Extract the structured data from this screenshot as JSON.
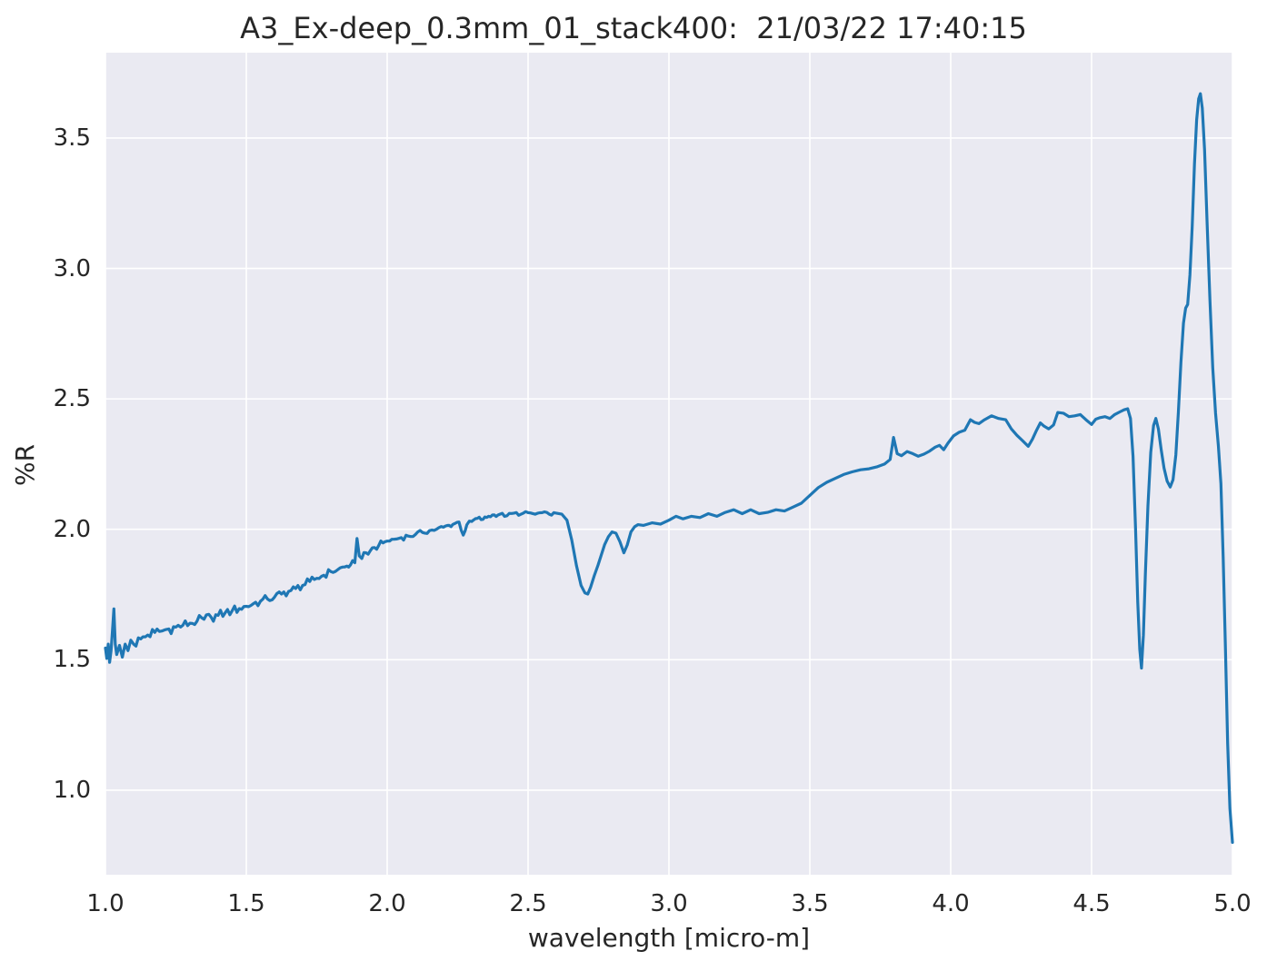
{
  "chart": {
    "title": "A3_Ex-deep_0.3mm_01_stack400:  21/03/22 17:40:15",
    "xlabel": "wavelength [micro-m]",
    "ylabel": "%R"
  },
  "style": {
    "figure_bg": "#ffffff",
    "panel_bg": "#eaeaf2",
    "grid_color": "#ffffff",
    "line_color": "#1f77b4",
    "text_color": "#262626",
    "line_width": 3.2,
    "grid_width": 1.6
  },
  "chart_data": {
    "type": "line",
    "title": "A3_Ex-deep_0.3mm_01_stack400:  21/03/22 17:40:15",
    "xlabel": "wavelength [micro-m]",
    "ylabel": "%R",
    "xlim": [
      1.0,
      5.0
    ],
    "ylim": [
      0.676,
      3.827
    ],
    "grid": true,
    "legend": false,
    "xticks": [
      {
        "value": 1.0,
        "label": "1.0"
      },
      {
        "value": 1.5,
        "label": "1.5"
      },
      {
        "value": 2.0,
        "label": "2.0"
      },
      {
        "value": 2.5,
        "label": "2.5"
      },
      {
        "value": 3.0,
        "label": "3.0"
      },
      {
        "value": 3.5,
        "label": "3.5"
      },
      {
        "value": 4.0,
        "label": "4.0"
      },
      {
        "value": 4.5,
        "label": "4.5"
      },
      {
        "value": 5.0,
        "label": "5.0"
      }
    ],
    "yticks": [
      {
        "value": 1.0,
        "label": "1.0"
      },
      {
        "value": 1.5,
        "label": "1.5"
      },
      {
        "value": 2.0,
        "label": "2.0"
      },
      {
        "value": 2.5,
        "label": "2.5"
      },
      {
        "value": 3.0,
        "label": "3.0"
      },
      {
        "value": 3.5,
        "label": "3.5"
      }
    ],
    "noise": {
      "x_start": 1.0,
      "x_end": 2.6,
      "amp_start": 0.024,
      "amp_end": 0.005,
      "step": 0.0075
    },
    "points": [
      [
        1.0,
        1.545
      ],
      [
        1.005,
        1.505
      ],
      [
        1.01,
        1.56
      ],
      [
        1.015,
        1.49
      ],
      [
        1.02,
        1.535
      ],
      [
        1.025,
        1.61
      ],
      [
        1.03,
        1.695
      ],
      [
        1.035,
        1.56
      ],
      [
        1.04,
        1.52
      ],
      [
        1.05,
        1.555
      ],
      [
        1.06,
        1.51
      ],
      [
        1.07,
        1.56
      ],
      [
        1.08,
        1.535
      ],
      [
        1.09,
        1.575
      ],
      [
        1.1,
        1.56
      ],
      [
        1.125,
        1.58
      ],
      [
        1.15,
        1.595
      ],
      [
        1.175,
        1.605
      ],
      [
        1.2,
        1.61
      ],
      [
        1.225,
        1.618
      ],
      [
        1.25,
        1.625
      ],
      [
        1.275,
        1.632
      ],
      [
        1.3,
        1.64
      ],
      [
        1.325,
        1.648
      ],
      [
        1.35,
        1.655
      ],
      [
        1.375,
        1.663
      ],
      [
        1.4,
        1.67
      ],
      [
        1.425,
        1.68
      ],
      [
        1.45,
        1.688
      ],
      [
        1.475,
        1.696
      ],
      [
        1.5,
        1.705
      ],
      [
        1.525,
        1.715
      ],
      [
        1.55,
        1.724
      ],
      [
        1.575,
        1.733
      ],
      [
        1.6,
        1.74
      ],
      [
        1.625,
        1.752
      ],
      [
        1.65,
        1.762
      ],
      [
        1.675,
        1.773
      ],
      [
        1.7,
        1.785
      ],
      [
        1.725,
        1.8
      ],
      [
        1.75,
        1.812
      ],
      [
        1.775,
        1.824
      ],
      [
        1.8,
        1.838
      ],
      [
        1.825,
        1.846
      ],
      [
        1.85,
        1.856
      ],
      [
        1.87,
        1.864
      ],
      [
        1.885,
        1.872
      ],
      [
        1.893,
        1.965
      ],
      [
        1.901,
        1.898
      ],
      [
        1.91,
        1.888
      ],
      [
        1.925,
        1.91
      ],
      [
        1.94,
        1.918
      ],
      [
        1.955,
        1.93
      ],
      [
        1.97,
        1.938
      ],
      [
        1.985,
        1.948
      ],
      [
        2.0,
        1.955
      ],
      [
        2.025,
        1.962
      ],
      [
        2.05,
        1.968
      ],
      [
        2.075,
        1.974
      ],
      [
        2.1,
        1.98
      ],
      [
        2.125,
        1.988
      ],
      [
        2.15,
        1.995
      ],
      [
        2.175,
        2.0
      ],
      [
        2.2,
        2.008
      ],
      [
        2.22,
        2.015
      ],
      [
        2.24,
        2.022
      ],
      [
        2.255,
        2.028
      ],
      [
        2.27,
        1.978
      ],
      [
        2.283,
        2.018
      ],
      [
        2.3,
        2.03
      ],
      [
        2.32,
        2.042
      ],
      [
        2.34,
        2.038
      ],
      [
        2.36,
        2.05
      ],
      [
        2.38,
        2.055
      ],
      [
        2.4,
        2.058
      ],
      [
        2.425,
        2.052
      ],
      [
        2.45,
        2.062
      ],
      [
        2.475,
        2.058
      ],
      [
        2.5,
        2.064
      ],
      [
        2.525,
        2.058
      ],
      [
        2.55,
        2.064
      ],
      [
        2.575,
        2.058
      ],
      [
        2.6,
        2.062
      ],
      [
        2.62,
        2.058
      ],
      [
        2.638,
        2.035
      ],
      [
        2.655,
        1.96
      ],
      [
        2.672,
        1.86
      ],
      [
        2.688,
        1.785
      ],
      [
        2.702,
        1.756
      ],
      [
        2.712,
        1.752
      ],
      [
        2.722,
        1.778
      ],
      [
        2.735,
        1.822
      ],
      [
        2.748,
        1.862
      ],
      [
        2.76,
        1.902
      ],
      [
        2.772,
        1.942
      ],
      [
        2.785,
        1.972
      ],
      [
        2.798,
        1.99
      ],
      [
        2.812,
        1.985
      ],
      [
        2.826,
        1.952
      ],
      [
        2.84,
        1.91
      ],
      [
        2.852,
        1.94
      ],
      [
        2.865,
        1.99
      ],
      [
        2.878,
        2.01
      ],
      [
        2.89,
        2.018
      ],
      [
        2.91,
        2.015
      ],
      [
        2.94,
        2.025
      ],
      [
        2.97,
        2.02
      ],
      [
        3.0,
        2.035
      ],
      [
        3.025,
        2.05
      ],
      [
        3.05,
        2.04
      ],
      [
        3.08,
        2.05
      ],
      [
        3.11,
        2.045
      ],
      [
        3.14,
        2.06
      ],
      [
        3.17,
        2.05
      ],
      [
        3.2,
        2.065
      ],
      [
        3.23,
        2.075
      ],
      [
        3.26,
        2.06
      ],
      [
        3.29,
        2.075
      ],
      [
        3.32,
        2.06
      ],
      [
        3.35,
        2.065
      ],
      [
        3.38,
        2.075
      ],
      [
        3.41,
        2.07
      ],
      [
        3.44,
        2.085
      ],
      [
        3.47,
        2.1
      ],
      [
        3.5,
        2.13
      ],
      [
        3.53,
        2.16
      ],
      [
        3.56,
        2.18
      ],
      [
        3.59,
        2.195
      ],
      [
        3.62,
        2.21
      ],
      [
        3.65,
        2.22
      ],
      [
        3.68,
        2.228
      ],
      [
        3.71,
        2.232
      ],
      [
        3.74,
        2.24
      ],
      [
        3.765,
        2.25
      ],
      [
        3.785,
        2.268
      ],
      [
        3.797,
        2.352
      ],
      [
        3.81,
        2.29
      ],
      [
        3.825,
        2.282
      ],
      [
        3.845,
        2.298
      ],
      [
        3.865,
        2.29
      ],
      [
        3.885,
        2.28
      ],
      [
        3.905,
        2.288
      ],
      [
        3.925,
        2.3
      ],
      [
        3.945,
        2.315
      ],
      [
        3.96,
        2.322
      ],
      [
        3.975,
        2.305
      ],
      [
        3.99,
        2.33
      ],
      [
        4.01,
        2.358
      ],
      [
        4.03,
        2.372
      ],
      [
        4.05,
        2.38
      ],
      [
        4.07,
        2.42
      ],
      [
        4.085,
        2.41
      ],
      [
        4.1,
        2.405
      ],
      [
        4.12,
        2.42
      ],
      [
        4.145,
        2.435
      ],
      [
        4.17,
        2.425
      ],
      [
        4.195,
        2.42
      ],
      [
        4.215,
        2.385
      ],
      [
        4.235,
        2.36
      ],
      [
        4.255,
        2.34
      ],
      [
        4.275,
        2.318
      ],
      [
        4.29,
        2.345
      ],
      [
        4.305,
        2.38
      ],
      [
        4.318,
        2.408
      ],
      [
        4.332,
        2.395
      ],
      [
        4.348,
        2.385
      ],
      [
        4.365,
        2.4
      ],
      [
        4.38,
        2.448
      ],
      [
        4.4,
        2.445
      ],
      [
        4.42,
        2.432
      ],
      [
        4.44,
        2.435
      ],
      [
        4.46,
        2.44
      ],
      [
        4.48,
        2.42
      ],
      [
        4.5,
        2.402
      ],
      [
        4.515,
        2.422
      ],
      [
        4.53,
        2.428
      ],
      [
        4.548,
        2.432
      ],
      [
        4.565,
        2.425
      ],
      [
        4.582,
        2.44
      ],
      [
        4.6,
        2.45
      ],
      [
        4.615,
        2.458
      ],
      [
        4.628,
        2.462
      ],
      [
        4.638,
        2.425
      ],
      [
        4.647,
        2.28
      ],
      [
        4.656,
        2.0
      ],
      [
        4.664,
        1.72
      ],
      [
        4.671,
        1.54
      ],
      [
        4.677,
        1.468
      ],
      [
        4.684,
        1.595
      ],
      [
        4.691,
        1.83
      ],
      [
        4.7,
        2.09
      ],
      [
        4.71,
        2.295
      ],
      [
        4.72,
        2.398
      ],
      [
        4.728,
        2.425
      ],
      [
        4.737,
        2.385
      ],
      [
        4.747,
        2.305
      ],
      [
        4.757,
        2.235
      ],
      [
        4.768,
        2.185
      ],
      [
        4.779,
        2.162
      ],
      [
        4.789,
        2.19
      ],
      [
        4.799,
        2.285
      ],
      [
        4.808,
        2.45
      ],
      [
        4.817,
        2.64
      ],
      [
        4.826,
        2.79
      ],
      [
        4.834,
        2.848
      ],
      [
        4.841,
        2.862
      ],
      [
        4.849,
        2.975
      ],
      [
        4.857,
        3.16
      ],
      [
        4.865,
        3.4
      ],
      [
        4.873,
        3.57
      ],
      [
        4.88,
        3.65
      ],
      [
        4.886,
        3.67
      ],
      [
        4.893,
        3.615
      ],
      [
        4.901,
        3.455
      ],
      [
        4.91,
        3.175
      ],
      [
        4.92,
        2.88
      ],
      [
        4.93,
        2.62
      ],
      [
        4.94,
        2.445
      ],
      [
        4.95,
        2.32
      ],
      [
        4.959,
        2.175
      ],
      [
        4.967,
        1.89
      ],
      [
        4.975,
        1.54
      ],
      [
        4.983,
        1.18
      ],
      [
        4.991,
        0.93
      ],
      [
        5.0,
        0.8
      ]
    ]
  }
}
